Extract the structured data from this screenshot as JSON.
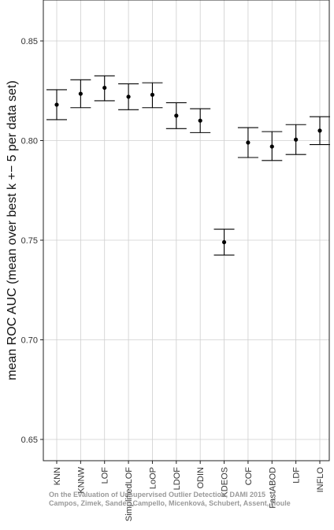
{
  "chart_data": {
    "type": "errorbar",
    "title": "",
    "xlabel": "",
    "ylabel": "mean ROC AUC (mean over best k +− 5 per data set)",
    "ylim": [
      0.64,
      0.87
    ],
    "y_ticks": [
      0.65,
      0.7,
      0.75,
      0.8,
      0.85
    ],
    "y_tick_labels": [
      "0.65",
      "0.70",
      "0.75",
      "0.80",
      "0.85"
    ],
    "grid": true,
    "categories": [
      "KNN",
      "KNNW",
      "LOF",
      "SimplifiedLOF",
      "LoOP",
      "LDOF",
      "ODIN",
      "KDEOS",
      "COF",
      "FastABOD",
      "LDF",
      "INFLO"
    ],
    "values": [
      0.818,
      0.8235,
      0.8265,
      0.822,
      0.823,
      0.8125,
      0.81,
      0.749,
      0.799,
      0.797,
      0.8005,
      0.805
    ],
    "lower": [
      0.8105,
      0.8165,
      0.82,
      0.8155,
      0.8165,
      0.806,
      0.804,
      0.7425,
      0.7915,
      0.79,
      0.793,
      0.798
    ],
    "upper": [
      0.8255,
      0.8305,
      0.8325,
      0.8285,
      0.829,
      0.819,
      0.816,
      0.7555,
      0.8065,
      0.8045,
      0.808,
      0.812
    ]
  },
  "watermark": {
    "line1": "On the Evaluation of Unsupervised Outlier Detection, DAMI 2015",
    "line2": "Campos, Zimek, Sander, Campello, Micenková, Schubert, Assent, Houle"
  },
  "colors": {
    "axis": "#222222",
    "grid": "#cfcfcf",
    "point": "#000000"
  }
}
